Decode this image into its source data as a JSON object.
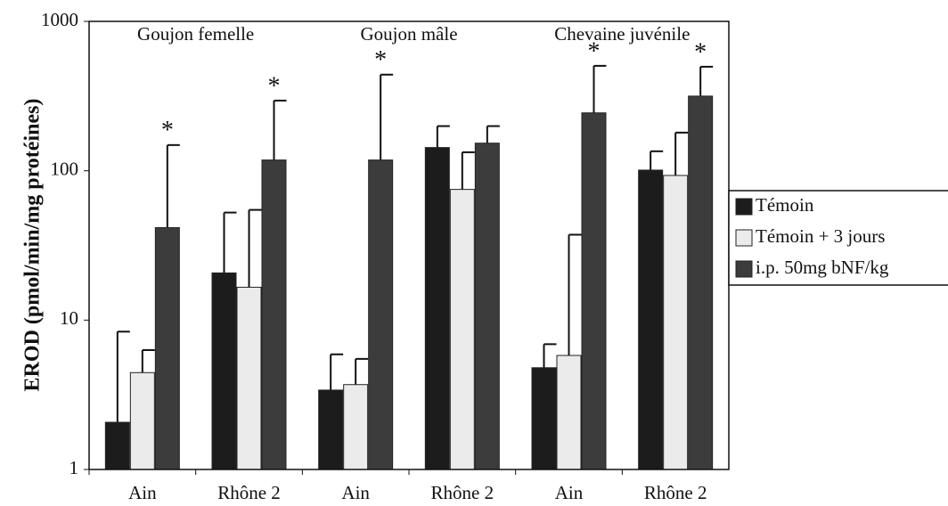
{
  "chart_data": {
    "type": "bar",
    "y_label": "EROD (pmol/min/mg protéines)",
    "categories": [
      "Ain",
      "Rhône 2",
      "Ain",
      "Rhône 2",
      "Ain",
      "Rhône 2"
    ],
    "groups": [
      "Goujon femelle",
      "Goujon mâle",
      "Chevaine juvénile"
    ],
    "series": [
      {
        "name": "Témoin",
        "color": "#1c1c1c",
        "values": [
          2.07,
          20.7,
          3.4,
          143,
          4.8,
          101
        ],
        "errors": [
          6.3,
          31.8,
          2.5,
          56,
          2.1,
          34
        ]
      },
      {
        "name": "Témoin + 3 jours",
        "color": "#ebebeb",
        "values": [
          4.45,
          16.6,
          3.7,
          75,
          5.8,
          93
        ],
        "errors": [
          1.85,
          38.1,
          1.8,
          58,
          31.5,
          87
        ]
      },
      {
        "name": "i.p. 50mg bNF/kg",
        "color": "#3c3c3c",
        "values": [
          41.6,
          118,
          118,
          153,
          244,
          316
        ],
        "errors": [
          107,
          177,
          322,
          46,
          260,
          181
        ]
      }
    ],
    "significance": [
      "*",
      "*",
      "*",
      null,
      "*",
      "*"
    ],
    "ylim": [
      1,
      1000
    ],
    "yticks": [
      1,
      10,
      100,
      1000
    ],
    "log_y": true,
    "legend": "right"
  }
}
